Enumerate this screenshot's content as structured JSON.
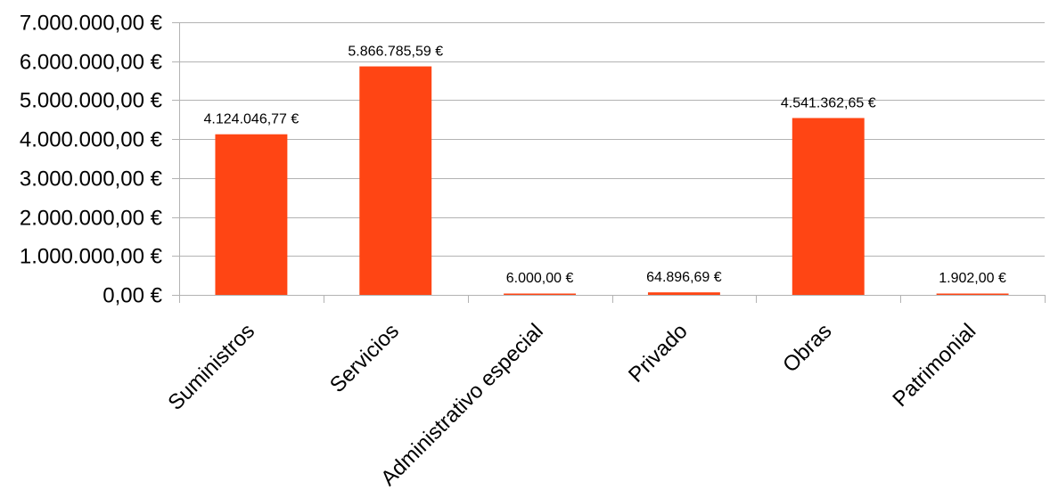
{
  "chart_data": {
    "type": "bar",
    "title": "",
    "xlabel": "",
    "ylabel": "",
    "ylim": [
      0,
      7000000
    ],
    "grid": true,
    "legend": "none",
    "bar_color": "#ff4514",
    "y_ticks": [
      0,
      1000000,
      2000000,
      3000000,
      4000000,
      5000000,
      6000000,
      7000000
    ],
    "y_tick_labels": [
      "0,00 €",
      "1.000.000,00 €",
      "2.000.000,00 €",
      "3.000.000,00 €",
      "4.000.000,00 €",
      "5.000.000,00 €",
      "6.000.000,00 €",
      "7.000.000,00 €"
    ],
    "categories": [
      "Suministros",
      "Servicios",
      "Administrativo especial",
      "Privado",
      "Obras",
      "Patrimonial"
    ],
    "values": [
      4124046.77,
      5866785.59,
      6000.0,
      64896.69,
      4541362.65,
      1902.0
    ],
    "data_labels": [
      "4.124.046,77 €",
      "5.866.785,59 €",
      "6.000,00 €",
      "64.896,69 €",
      "4.541.362,65 €",
      "1.902,00 €"
    ]
  }
}
